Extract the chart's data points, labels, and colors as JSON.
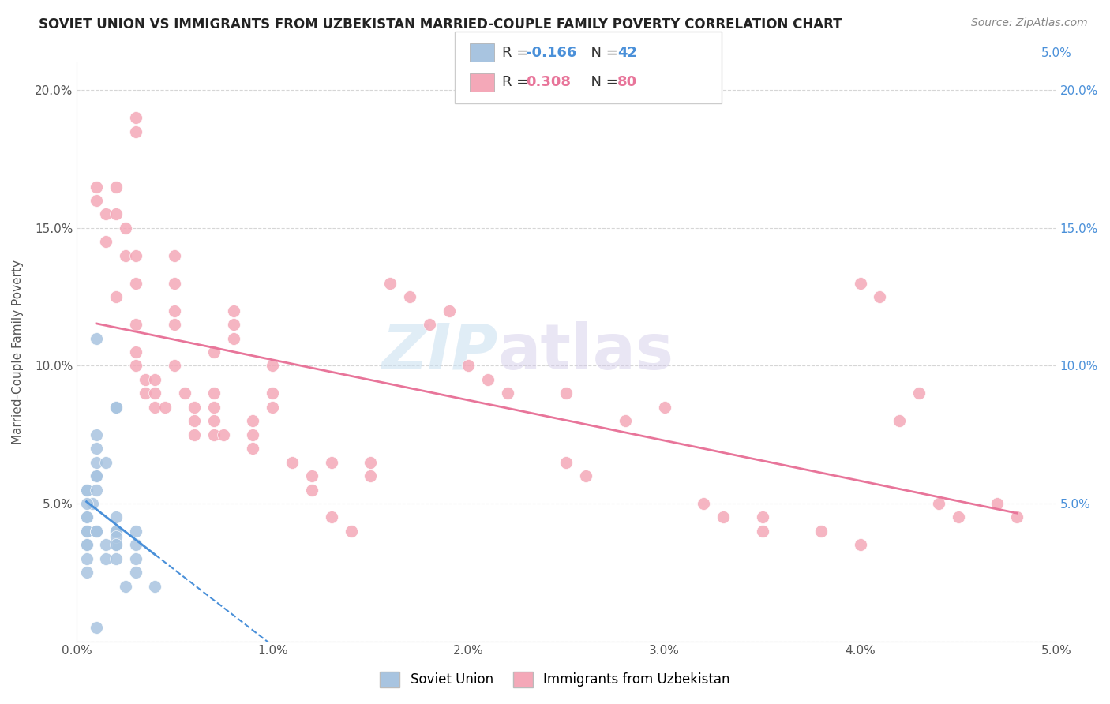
{
  "title": "SOVIET UNION VS IMMIGRANTS FROM UZBEKISTAN MARRIED-COUPLE FAMILY POVERTY CORRELATION CHART",
  "source": "Source: ZipAtlas.com",
  "ylabel": "Married-Couple Family Poverty",
  "xlim": [
    0.0,
    0.05
  ],
  "ylim": [
    0.0,
    0.21
  ],
  "xtick_labels": [
    "0.0%",
    "1.0%",
    "2.0%",
    "3.0%",
    "4.0%",
    "5.0%"
  ],
  "xtick_vals": [
    0.0,
    0.01,
    0.02,
    0.03,
    0.04,
    0.05
  ],
  "ytick_labels_left": [
    "",
    "5.0%",
    "10.0%",
    "15.0%",
    "20.0%"
  ],
  "ytick_vals_left": [
    0.0,
    0.05,
    0.1,
    0.15,
    0.2
  ],
  "ytick_labels_right": [
    "5.0%",
    "10.0%",
    "15.0%",
    "20.0%"
  ],
  "ytick_vals_right": [
    0.05,
    0.1,
    0.15,
    0.2
  ],
  "soviet_color": "#a8c4e0",
  "uzbek_color": "#f4a8b8",
  "soviet_line_color": "#4a90d9",
  "uzbek_line_color": "#e8759a",
  "soviet_R": -0.166,
  "soviet_N": 42,
  "uzbek_R": 0.308,
  "uzbek_N": 80,
  "legend_label_soviet": "Soviet Union",
  "legend_label_uzbek": "Immigrants from Uzbekistan",
  "background_color": "#ffffff",
  "grid_color": "#cccccc",
  "watermark_zip": "ZIP",
  "watermark_atlas": "atlas",
  "soviet_x": [
    0.002,
    0.001,
    0.001,
    0.002,
    0.001,
    0.001,
    0.001,
    0.0005,
    0.0005,
    0.001,
    0.001,
    0.0015,
    0.001,
    0.0008,
    0.0005,
    0.0005,
    0.0005,
    0.0005,
    0.0005,
    0.0005,
    0.001,
    0.001,
    0.001,
    0.0005,
    0.0005,
    0.0005,
    0.002,
    0.002,
    0.003,
    0.002,
    0.002,
    0.002,
    0.0015,
    0.002,
    0.003,
    0.003,
    0.0015,
    0.002,
    0.003,
    0.0025,
    0.004,
    0.001
  ],
  "soviet_y": [
    0.085,
    0.075,
    0.11,
    0.085,
    0.065,
    0.07,
    0.06,
    0.055,
    0.055,
    0.055,
    0.06,
    0.065,
    0.06,
    0.05,
    0.05,
    0.045,
    0.045,
    0.04,
    0.04,
    0.035,
    0.04,
    0.04,
    0.04,
    0.035,
    0.03,
    0.025,
    0.045,
    0.04,
    0.04,
    0.035,
    0.04,
    0.038,
    0.035,
    0.035,
    0.03,
    0.035,
    0.03,
    0.03,
    0.025,
    0.02,
    0.02,
    0.005
  ],
  "uzbek_x": [
    0.001,
    0.001,
    0.0015,
    0.0015,
    0.002,
    0.002,
    0.002,
    0.0025,
    0.0025,
    0.003,
    0.003,
    0.003,
    0.003,
    0.003,
    0.003,
    0.003,
    0.0035,
    0.0035,
    0.004,
    0.004,
    0.004,
    0.0045,
    0.005,
    0.005,
    0.005,
    0.005,
    0.005,
    0.0055,
    0.006,
    0.006,
    0.006,
    0.007,
    0.007,
    0.007,
    0.007,
    0.007,
    0.0075,
    0.008,
    0.008,
    0.008,
    0.009,
    0.009,
    0.009,
    0.01,
    0.01,
    0.01,
    0.011,
    0.012,
    0.012,
    0.013,
    0.013,
    0.014,
    0.015,
    0.015,
    0.016,
    0.017,
    0.018,
    0.019,
    0.02,
    0.021,
    0.022,
    0.025,
    0.025,
    0.026,
    0.028,
    0.03,
    0.032,
    0.033,
    0.035,
    0.035,
    0.038,
    0.04,
    0.04,
    0.041,
    0.042,
    0.043,
    0.044,
    0.045,
    0.047,
    0.048
  ],
  "uzbek_y": [
    0.165,
    0.16,
    0.155,
    0.145,
    0.165,
    0.155,
    0.125,
    0.15,
    0.14,
    0.19,
    0.185,
    0.14,
    0.13,
    0.115,
    0.105,
    0.1,
    0.095,
    0.09,
    0.095,
    0.09,
    0.085,
    0.085,
    0.14,
    0.13,
    0.12,
    0.115,
    0.1,
    0.09,
    0.085,
    0.08,
    0.075,
    0.075,
    0.105,
    0.09,
    0.085,
    0.08,
    0.075,
    0.12,
    0.115,
    0.11,
    0.08,
    0.075,
    0.07,
    0.1,
    0.09,
    0.085,
    0.065,
    0.06,
    0.055,
    0.065,
    0.045,
    0.04,
    0.065,
    0.06,
    0.13,
    0.125,
    0.115,
    0.12,
    0.1,
    0.095,
    0.09,
    0.09,
    0.065,
    0.06,
    0.08,
    0.085,
    0.05,
    0.045,
    0.04,
    0.045,
    0.04,
    0.035,
    0.13,
    0.125,
    0.08,
    0.09,
    0.05,
    0.045,
    0.05,
    0.045
  ]
}
